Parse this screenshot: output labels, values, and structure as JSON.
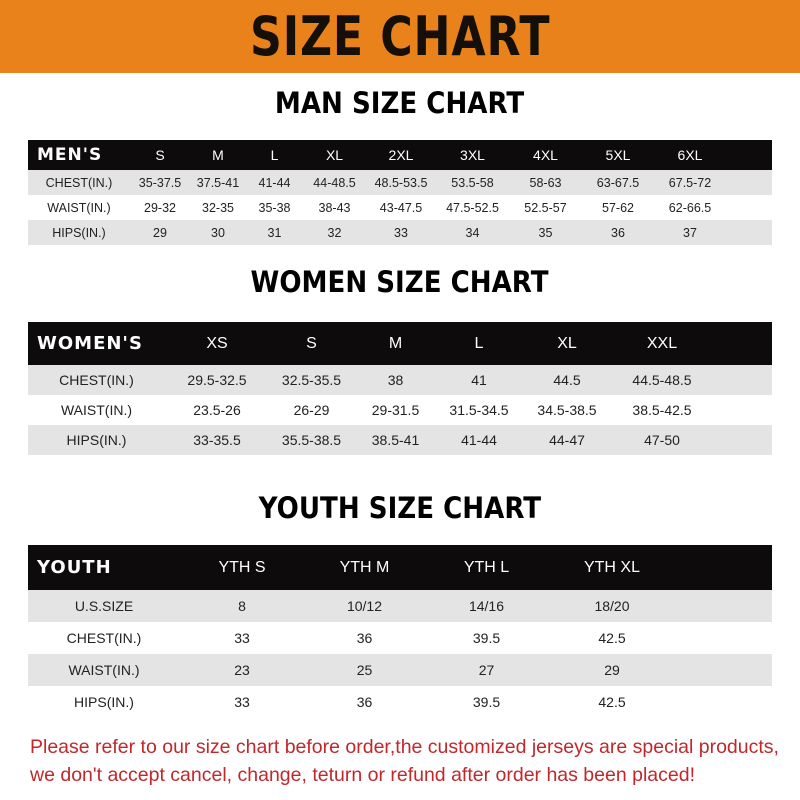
{
  "banner": {
    "title": "SIZE CHART",
    "color": "#ea821c"
  },
  "men": {
    "title": "MAN SIZE CHART",
    "header": [
      "MEN'S",
      "S",
      "M",
      "L",
      "XL",
      "2XL",
      "3XL",
      "4XL",
      "5XL",
      "6XL"
    ],
    "rows": [
      [
        "CHEST(IN.)",
        "35-37.5",
        "37.5-41",
        "41-44",
        "44-48.5",
        "48.5-53.5",
        "53.5-58",
        "58-63",
        "63-67.5",
        "67.5-72"
      ],
      [
        "WAIST(IN.)",
        "29-32",
        "32-35",
        "35-38",
        "38-43",
        "43-47.5",
        "47.5-52.5",
        "52.5-57",
        "57-62",
        "62-66.5"
      ],
      [
        "HIPS(IN.)",
        "29",
        "30",
        "31",
        "32",
        "33",
        "34",
        "35",
        "36",
        "37"
      ]
    ]
  },
  "women": {
    "title": "WOMEN SIZE CHART",
    "header": [
      "WOMEN'S",
      "XS",
      "S",
      "M",
      "L",
      "XL",
      "XXL"
    ],
    "rows": [
      [
        "CHEST(IN.)",
        "29.5-32.5",
        "32.5-35.5",
        "38",
        "41",
        "44.5",
        "44.5-48.5"
      ],
      [
        "WAIST(IN.)",
        "23.5-26",
        "26-29",
        "29-31.5",
        "31.5-34.5",
        "34.5-38.5",
        "38.5-42.5"
      ],
      [
        "HIPS(IN.)",
        "33-35.5",
        "35.5-38.5",
        "38.5-41",
        "41-44",
        "44-47",
        "47-50"
      ]
    ]
  },
  "youth": {
    "title": "YOUTH SIZE CHART",
    "header": [
      "YOUTH",
      "YTH S",
      "YTH M",
      "YTH L",
      "YTH XL"
    ],
    "rows": [
      [
        "U.S.SIZE",
        "8",
        "10/12",
        "14/16",
        "18/20"
      ],
      [
        "CHEST(IN.)",
        "33",
        "36",
        "39.5",
        "42.5"
      ],
      [
        "WAIST(IN.)",
        "23",
        "25",
        "27",
        "29"
      ],
      [
        "HIPS(IN.)",
        "33",
        "36",
        "39.5",
        "42.5"
      ]
    ]
  },
  "notes": [
    "Please refer to our size chart before order,the customized jerseys are special products,",
    "we don't accept cancel, change, teturn or refund after order has been placed!"
  ]
}
